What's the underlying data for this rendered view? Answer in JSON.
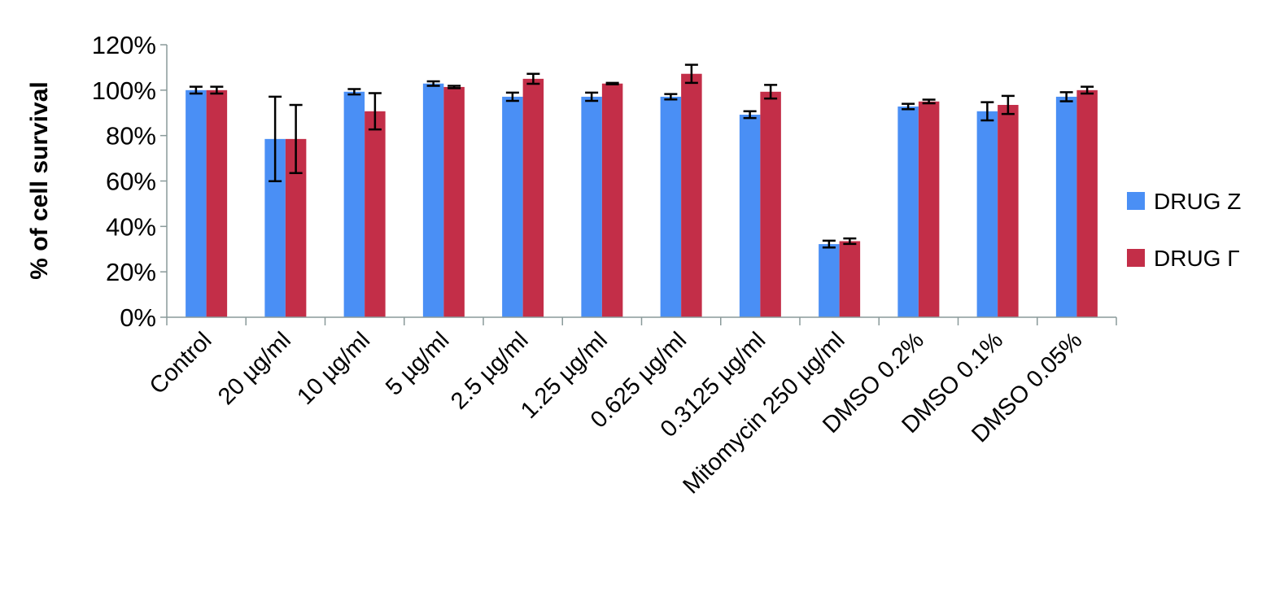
{
  "chart_data": {
    "type": "bar",
    "title": "",
    "xlabel": "",
    "ylabel": "% of cell survival",
    "ylim": [
      0,
      120
    ],
    "yticks": [
      "0%",
      "20%",
      "40%",
      "60%",
      "80%",
      "100%",
      "120%"
    ],
    "ytick_values": [
      0,
      20,
      40,
      60,
      80,
      100,
      120
    ],
    "grid": false,
    "legend_position": "right",
    "categories": [
      "Control",
      "20 µg/ml",
      "10 µg/ml",
      "5 µg/ml",
      "2.5 µg/ml",
      "1.25 µg/ml",
      "0.625 µg/ml",
      "0.3125 µg/ml",
      "Mitomycin 250 µg/ml",
      "DMSO 0.2%",
      "DMSO 0.1%",
      "DMSO 0.05%"
    ],
    "series": [
      {
        "name": "DRUG Z",
        "color": "#4a8ff5",
        "values": [
          100,
          78.5,
          99.3,
          102.9,
          97.1,
          97.1,
          97.1,
          89.2,
          32.2,
          92.8,
          90.7,
          97.1
        ],
        "errors": [
          1.5,
          18.6,
          1.2,
          1.0,
          1.8,
          1.8,
          1.2,
          1.5,
          1.5,
          1.2,
          4.0,
          2.0
        ]
      },
      {
        "name": "DRUG Γ",
        "color": "#c32e48",
        "values": [
          100,
          78.5,
          90.7,
          101.4,
          105.0,
          102.9,
          107.2,
          99.3,
          33.5,
          95.0,
          93.5,
          100.0
        ],
        "errors": [
          1.5,
          15.0,
          8.0,
          0.5,
          2.2,
          0.3,
          4.0,
          3.0,
          1.2,
          0.8,
          4.0,
          1.5
        ]
      }
    ]
  }
}
